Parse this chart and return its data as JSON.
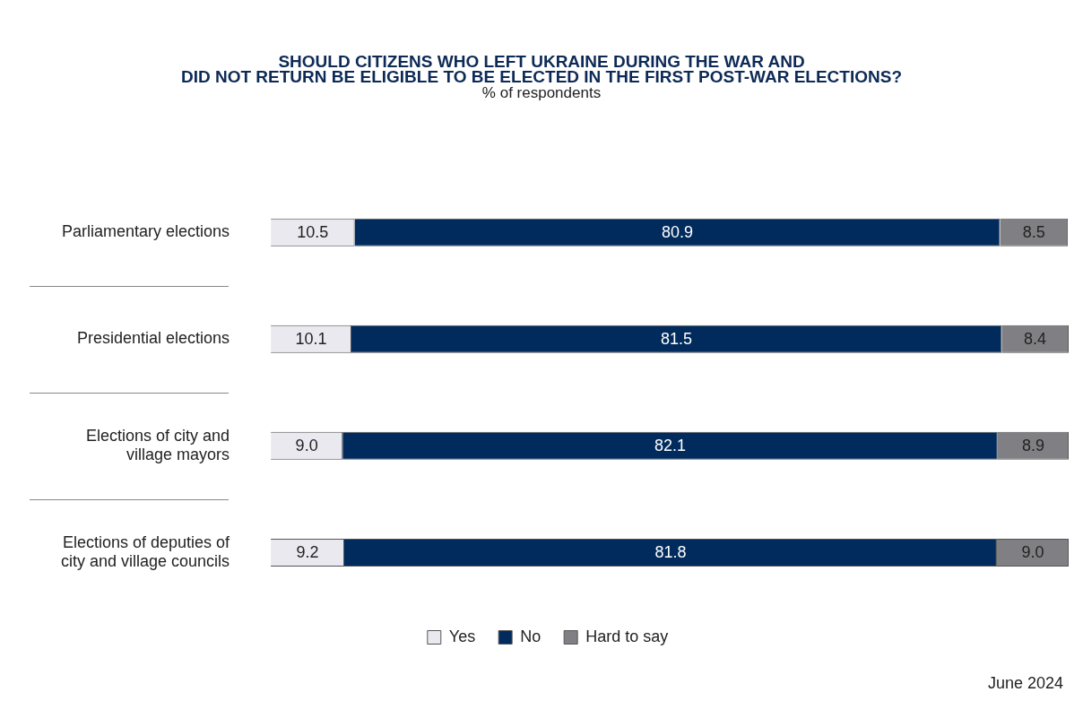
{
  "chart_data": {
    "type": "bar",
    "orientation": "horizontal",
    "stacked": true,
    "title": "SHOULD CITIZENS WHO LEFT UKRAINE DURING THE WAR AND\nDID NOT RETURN BE ELIGIBLE TO BE ELECTED IN THE FIRST POST-WAR ELECTIONS?",
    "subtitle": "% of respondents",
    "categories": [
      "Parliamentary elections",
      "Presidential elections",
      "Elections of city and village mayors",
      "Elections of deputies of city and village councils"
    ],
    "series": [
      {
        "name": "Yes",
        "color": "#e9e9ef",
        "values": [
          10.5,
          10.1,
          9.0,
          9.2
        ],
        "value_labels": [
          "10.5",
          "10.1",
          "9.0",
          "9.2"
        ]
      },
      {
        "name": "No",
        "color": "#002b5c",
        "values": [
          80.9,
          81.5,
          82.1,
          81.8
        ],
        "value_labels": [
          "80.9",
          "81.5",
          "82.1",
          "81.8"
        ]
      },
      {
        "name": "Hard to say",
        "color": "#808084",
        "values": [
          8.5,
          8.4,
          8.9,
          9.0
        ],
        "value_labels": [
          "8.5",
          "8.4",
          "8.9",
          "9.0"
        ]
      }
    ],
    "legend": "bottom",
    "annotations": [
      "June 2024"
    ]
  }
}
